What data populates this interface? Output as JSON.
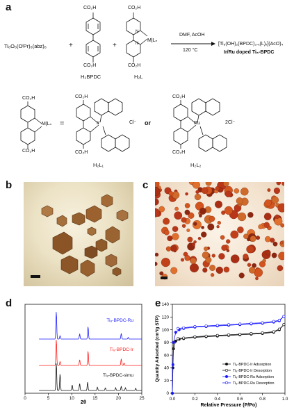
{
  "panels": {
    "a": "a",
    "b": "b",
    "c": "c",
    "d": "d",
    "e": "e"
  },
  "scheme": {
    "reactant1": "Ti₈O₈(OᴵPr)₈(abz)₈",
    "plus": "+",
    "h2bpdc": "H₂BPDC",
    "h2l": "H₂L",
    "conditions_top": "DMF, AcOH",
    "conditions_bottom": "120 °C",
    "product": "[Ti₈(OH)₂(BPDC)₃.ₓ(L)ₓ](AcO)₄",
    "product_sub": "Ir/Ru doped Ti₈-BPDC",
    "co2h": "CO₂H",
    "ml_n": "M|Lₙ",
    "equals": "=",
    "or": "or",
    "ir": "Ir",
    "ru": "Ru",
    "cl": "Cl⁻",
    "cl2": "2Cl⁻",
    "h2l1": "H₂L₁",
    "h2l2": "H₂L₂",
    "n": "N"
  },
  "chart_data": [
    {
      "type": "line",
      "panel": "d",
      "xlabel": "2θ",
      "xlim": [
        0,
        25
      ],
      "xticks": [
        0,
        5,
        10,
        15,
        20,
        25
      ],
      "series": [
        {
          "name": "Ti₈-BPDC-Ru",
          "color": "#1a1aff",
          "peaks": [
            [
              6.7,
              1.0
            ],
            [
              7.5,
              0.12
            ],
            [
              11.7,
              0.18
            ],
            [
              13.5,
              0.45
            ],
            [
              20.6,
              0.2
            ],
            [
              22.1,
              0.06
            ]
          ]
        },
        {
          "name": "Ti₈-BPDC-Ir",
          "color": "#ff1a1a",
          "peaks": [
            [
              6.7,
              1.0
            ],
            [
              7.5,
              0.15
            ],
            [
              11.7,
              0.22
            ],
            [
              13.5,
              0.55
            ],
            [
              20.6,
              0.25
            ],
            [
              21.2,
              0.1
            ]
          ]
        },
        {
          "name": "Ti₈-BPDC-simu",
          "color": "#111111",
          "peaks": [
            [
              6.7,
              1.0
            ],
            [
              7.5,
              0.6
            ],
            [
              10.1,
              0.2
            ],
            [
              11.7,
              0.25
            ],
            [
              13.4,
              0.3
            ],
            [
              15.5,
              0.12
            ],
            [
              17.2,
              0.1
            ],
            [
              19.4,
              0.1
            ],
            [
              20.6,
              0.15
            ],
            [
              21.5,
              0.1
            ],
            [
              23.7,
              0.08
            ]
          ]
        }
      ]
    },
    {
      "type": "line",
      "panel": "e",
      "xlabel": "Relative Pressure (P/Po)",
      "ylabel": "Quantity Adsorbed (cm³/g STP)",
      "xlim": [
        0,
        1.0
      ],
      "ylim": [
        0,
        140
      ],
      "xticks": [
        "0.0",
        "0.2",
        "0.4",
        "0.6",
        "0.8",
        "1.0"
      ],
      "yticks": [
        0,
        20,
        40,
        60,
        80,
        100,
        120,
        140
      ],
      "legend_position": "bottom-right",
      "series": [
        {
          "name": "Ti₈-BPDC-Ir Adsorption",
          "color": "#111111",
          "marker": "filled",
          "x": [
            0.0,
            0.005,
            0.01,
            0.03,
            0.06,
            0.1,
            0.2,
            0.3,
            0.4,
            0.5,
            0.6,
            0.7,
            0.8,
            0.9,
            0.95,
            0.99
          ],
          "y": [
            0,
            40,
            70,
            82,
            85,
            86,
            88,
            89,
            90,
            91,
            92,
            93,
            94,
            96,
            100,
            108
          ]
        },
        {
          "name": "Ti₈-BPDC-Ir Desorption",
          "color": "#111111",
          "marker": "open",
          "x": [
            0.99,
            0.95,
            0.9,
            0.8,
            0.7,
            0.6,
            0.5,
            0.4,
            0.3,
            0.2,
            0.1,
            0.05
          ],
          "y": [
            108,
            101,
            97,
            95,
            94,
            93,
            92,
            91,
            90,
            89,
            87,
            86
          ]
        },
        {
          "name": "Ti₈-BPDC-Ru Adsorption",
          "color": "#1a1aff",
          "marker": "filled",
          "x": [
            0.0,
            0.005,
            0.01,
            0.03,
            0.06,
            0.1,
            0.2,
            0.3,
            0.4,
            0.5,
            0.6,
            0.7,
            0.8,
            0.9,
            0.95,
            0.99
          ],
          "y": [
            0,
            45,
            80,
            96,
            100,
            102,
            104,
            105,
            106,
            107,
            108,
            109,
            110,
            112,
            114,
            121
          ]
        },
        {
          "name": "Ti₈-BPDC-Ru Desorption",
          "color": "#1a1aff",
          "marker": "open",
          "x": [
            0.99,
            0.95,
            0.9,
            0.8,
            0.7,
            0.6,
            0.5,
            0.4,
            0.3,
            0.2,
            0.1,
            0.05
          ],
          "y": [
            121,
            115,
            113,
            111,
            110,
            109,
            108,
            107,
            106,
            105,
            103,
            102
          ]
        }
      ]
    }
  ]
}
